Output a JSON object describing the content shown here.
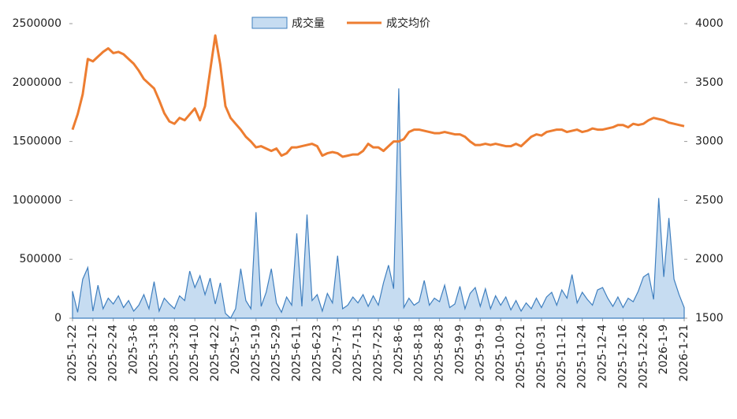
{
  "chart_data": {
    "type": "line",
    "categories": [
      "2025-1-22",
      null,
      null,
      null,
      "2025-2-12",
      null,
      null,
      null,
      "2025-2-24",
      null,
      null,
      null,
      "2025-3-6",
      null,
      null,
      null,
      "2025-3-18",
      null,
      null,
      null,
      "2025-3-28",
      null,
      null,
      null,
      "2025-4-10",
      null,
      null,
      null,
      "2025-4-22",
      null,
      null,
      null,
      "2025-5-7",
      null,
      null,
      null,
      "2025-5-19",
      null,
      null,
      null,
      "2025-5-29",
      null,
      null,
      null,
      "2025-6-11",
      null,
      null,
      null,
      "2025-6-23",
      null,
      null,
      null,
      "2025-7-3",
      null,
      null,
      null,
      "2025-7-15",
      null,
      null,
      null,
      "2025-7-25",
      null,
      null,
      null,
      "2025-8-6",
      null,
      null,
      null,
      "2025-8-18",
      null,
      null,
      null,
      "2025-8-28",
      null,
      null,
      null,
      "2025-9-9",
      null,
      null,
      null,
      "2025-9-19",
      null,
      null,
      null,
      "2025-10-9",
      null,
      null,
      null,
      "2025-10-21",
      null,
      null,
      null,
      "2025-10-31",
      null,
      null,
      null,
      "2025-11-12",
      null,
      null,
      null,
      "2025-11-24",
      null,
      null,
      null,
      "2025-12-4",
      null,
      null,
      null,
      "2025-12-16",
      null,
      null,
      null,
      "2025-12-26",
      null,
      null,
      null,
      "2026-1-9",
      null,
      null,
      null,
      "2026-1-21"
    ],
    "series": [
      {
        "name": "成交量",
        "type": "area",
        "color": "#3f7fbf",
        "fill": "#c6dcf1",
        "values": [
          230000,
          50000,
          330000,
          430000,
          60000,
          280000,
          80000,
          170000,
          120000,
          190000,
          90000,
          150000,
          60000,
          110000,
          200000,
          80000,
          310000,
          60000,
          170000,
          120000,
          80000,
          190000,
          150000,
          400000,
          260000,
          360000,
          200000,
          340000,
          120000,
          300000,
          40000,
          0,
          80000,
          420000,
          150000,
          80000,
          900000,
          100000,
          220000,
          420000,
          130000,
          50000,
          180000,
          110000,
          720000,
          100000,
          880000,
          150000,
          200000,
          60000,
          210000,
          130000,
          530000,
          80000,
          110000,
          180000,
          130000,
          200000,
          100000,
          190000,
          110000,
          300000,
          450000,
          250000,
          1950000,
          90000,
          170000,
          110000,
          140000,
          320000,
          110000,
          170000,
          140000,
          280000,
          90000,
          120000,
          270000,
          80000,
          210000,
          260000,
          100000,
          250000,
          80000,
          190000,
          110000,
          180000,
          70000,
          150000,
          60000,
          130000,
          80000,
          170000,
          90000,
          180000,
          220000,
          110000,
          240000,
          170000,
          370000,
          130000,
          220000,
          160000,
          110000,
          240000,
          260000,
          170000,
          100000,
          180000,
          90000,
          170000,
          140000,
          230000,
          350000,
          380000,
          160000,
          1020000,
          350000,
          850000,
          330000,
          200000,
          90000
        ]
      },
      {
        "name": "成交均价",
        "type": "line",
        "axis": "y2",
        "color": "#ed7d31",
        "values": [
          3100,
          3230,
          3400,
          3700,
          3680,
          3720,
          3760,
          3790,
          3750,
          3760,
          3740,
          3700,
          3660,
          3600,
          3530,
          3490,
          3450,
          3350,
          3240,
          3170,
          3150,
          3200,
          3180,
          3230,
          3280,
          3180,
          3300,
          3600,
          3900,
          3650,
          3300,
          3200,
          3150,
          3100,
          3040,
          3000,
          2950,
          2960,
          2940,
          2920,
          2940,
          2880,
          2900,
          2950,
          2950,
          2960,
          2970,
          2980,
          2960,
          2880,
          2900,
          2910,
          2900,
          2870,
          2880,
          2890,
          2890,
          2920,
          2980,
          2950,
          2950,
          2920,
          2960,
          3000,
          3000,
          3020,
          3080,
          3100,
          3100,
          3090,
          3080,
          3070,
          3070,
          3080,
          3070,
          3060,
          3060,
          3040,
          3000,
          2970,
          2970,
          2980,
          2970,
          2980,
          2970,
          2960,
          2960,
          2980,
          2960,
          3000,
          3040,
          3060,
          3050,
          3080,
          3090,
          3100,
          3100,
          3080,
          3090,
          3100,
          3080,
          3090,
          3110,
          3100,
          3100,
          3110,
          3120,
          3140,
          3140,
          3120,
          3150,
          3140,
          3150,
          3180,
          3200,
          3190,
          3180,
          3160,
          3150,
          3140,
          3130
        ]
      }
    ],
    "ylim": [
      0,
      2500000
    ],
    "yticks": [
      0,
      500000,
      1000000,
      1500000,
      2000000,
      2500000
    ],
    "y2lim": [
      1500,
      4000
    ],
    "y2ticks": [
      1500,
      2000,
      2500,
      3000,
      3500,
      4000
    ],
    "legend": "top"
  }
}
